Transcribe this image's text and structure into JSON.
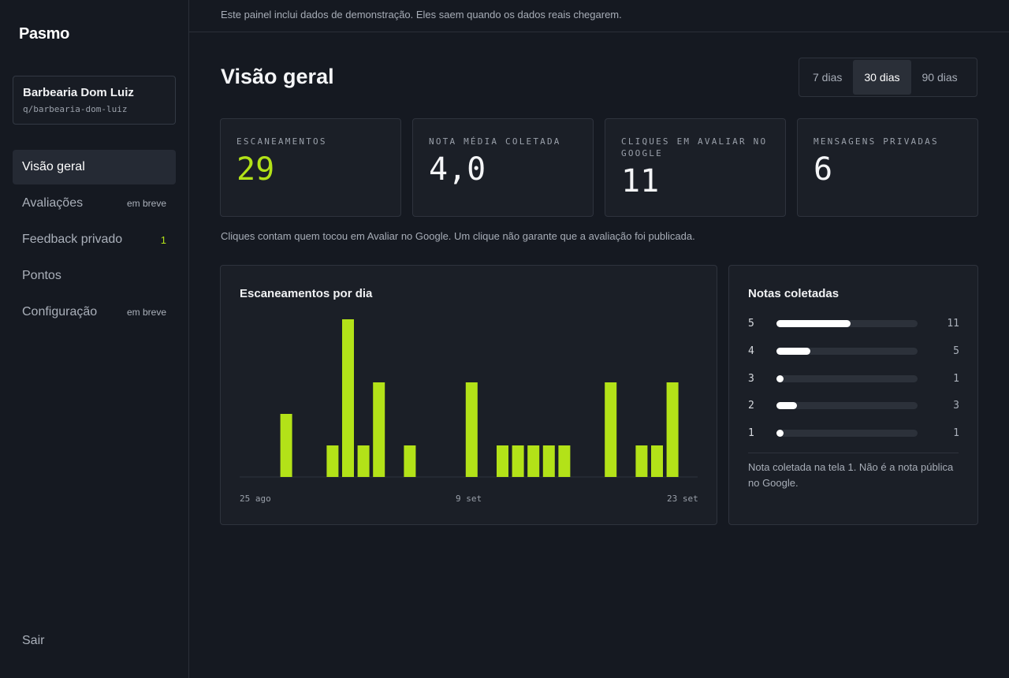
{
  "brand": "Pasmo",
  "business": {
    "name": "Barbearia Dom Luiz",
    "slug": "q/barbearia-dom-luiz"
  },
  "nav": [
    {
      "label": "Visão geral",
      "badge": "",
      "active": true
    },
    {
      "label": "Avaliações",
      "badge": "em breve"
    },
    {
      "label": "Feedback privado",
      "count": "1"
    },
    {
      "label": "Pontos",
      "badge": ""
    },
    {
      "label": "Configuração",
      "badge": "em breve"
    }
  ],
  "signout_label": "Sair",
  "banner": "Este painel inclui dados de demonstração. Eles saem quando os dados reais chegarem.",
  "page_title": "Visão geral",
  "ranges": [
    {
      "label": "7 dias"
    },
    {
      "label": "30 dias",
      "active": true
    },
    {
      "label": "90 dias"
    }
  ],
  "kpis": [
    {
      "label": "ESCANEAMENTOS",
      "value": "29",
      "accent": true
    },
    {
      "label": "NOTA MÉDIA COLETADA",
      "value": "4,0"
    },
    {
      "label": "CLIQUES EM AVALIAR NO GOOGLE",
      "value": "11"
    },
    {
      "label": "MENSAGENS PRIVADAS",
      "value": "6"
    }
  ],
  "clicks_note": "Cliques contam quem tocou em Avaliar no Google. Um clique não garante que a avaliação foi publicada.",
  "colors": {
    "accent": "#b3e218",
    "background": "#151921",
    "panel": "#1b1f27"
  },
  "chart_data": [
    {
      "type": "bar",
      "title": "Escaneamentos por dia",
      "x_tick_labels": [
        "25 ago",
        "9 set",
        "23 set"
      ],
      "values": [
        0,
        2,
        0,
        0,
        1,
        5,
        1,
        3,
        0,
        1,
        0,
        0,
        0,
        3,
        0,
        1,
        1,
        1,
        1,
        1,
        0,
        0,
        3,
        0,
        1,
        1,
        3
      ],
      "ylim": [
        0,
        5
      ],
      "grid": false
    },
    {
      "type": "bar",
      "orientation": "horizontal",
      "title": "Notas coletadas",
      "categories": [
        "5",
        "4",
        "3",
        "2",
        "1"
      ],
      "values": [
        11,
        5,
        1,
        3,
        1
      ],
      "note": "Nota coletada na tela 1. Não é a nota pública no Google."
    }
  ]
}
